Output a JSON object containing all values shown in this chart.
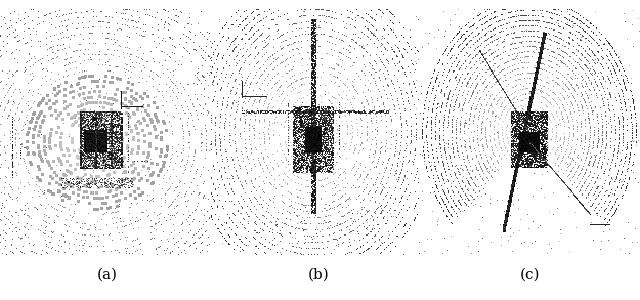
{
  "labels": [
    "(a)",
    "(b)",
    "(c)"
  ],
  "background_color": "#ffffff",
  "point_color": "#000000",
  "label_fontsize": 11,
  "fig_width": 6.4,
  "fig_height": 3.0,
  "dpi": 100
}
